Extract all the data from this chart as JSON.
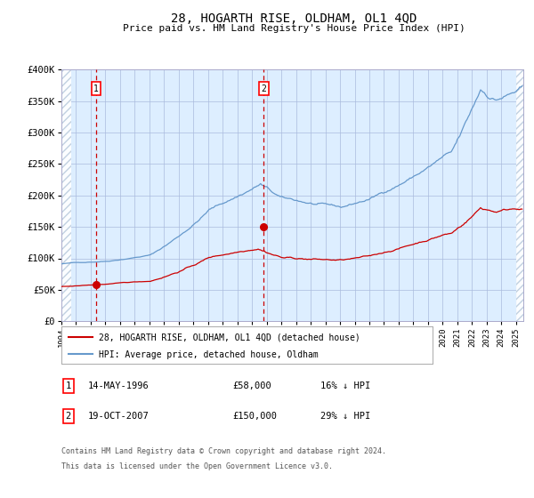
{
  "title": "28, HOGARTH RISE, OLDHAM, OL1 4QD",
  "subtitle": "Price paid vs. HM Land Registry's House Price Index (HPI)",
  "legend_line1": "28, HOGARTH RISE, OLDHAM, OL1 4QD (detached house)",
  "legend_line2": "HPI: Average price, detached house, Oldham",
  "footnote1": "Contains HM Land Registry data © Crown copyright and database right 2024.",
  "footnote2": "This data is licensed under the Open Government Licence v3.0.",
  "sale1_date": "14-MAY-1996",
  "sale1_price": "£58,000",
  "sale1_label": "16% ↓ HPI",
  "sale1_x": 1996.37,
  "sale1_y": 58000,
  "sale2_date": "19-OCT-2007",
  "sale2_price": "£150,000",
  "sale2_label": "29% ↓ HPI",
  "sale2_x": 2007.8,
  "sale2_y": 150000,
  "hpi_color": "#6699cc",
  "price_color": "#cc0000",
  "plot_bg": "#ddeeff",
  "grid_color": "#aabbdd",
  "hatch_color": "#bbccdd",
  "ylim": [
    0,
    400000
  ],
  "xlim_start": 1994.0,
  "xlim_end": 2025.5,
  "yticks": [
    0,
    50000,
    100000,
    150000,
    200000,
    250000,
    300000,
    350000,
    400000
  ],
  "ytick_labels": [
    "£0",
    "£50K",
    "£100K",
    "£150K",
    "£200K",
    "£250K",
    "£300K",
    "£350K",
    "£400K"
  ],
  "xticks": [
    1994,
    1995,
    1996,
    1997,
    1998,
    1999,
    2000,
    2001,
    2002,
    2003,
    2004,
    2005,
    2006,
    2007,
    2008,
    2009,
    2010,
    2011,
    2012,
    2013,
    2014,
    2015,
    2016,
    2017,
    2018,
    2019,
    2020,
    2021,
    2022,
    2023,
    2024,
    2025
  ]
}
